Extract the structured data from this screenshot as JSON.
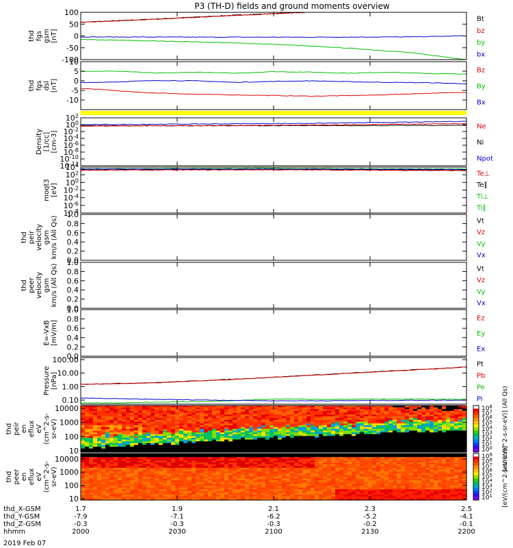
{
  "title": "P3 (TH-D) fields and ground moments overview",
  "date_label": "2019 Feb 07",
  "colors": {
    "black": "#000000",
    "red": "#dd0000",
    "green": "#00c000",
    "blue": "#0000cc",
    "yellow": "#ffff00"
  },
  "ephemeris": {
    "rows": [
      {
        "label": "thd_X-GSM",
        "values": [
          "1.7",
          "1.9",
          "2.1",
          "2.3",
          "2.5"
        ]
      },
      {
        "label": "thd_Y-GSM",
        "values": [
          "-7.9",
          "-7.1",
          "-6.2",
          "-5.2",
          "-4.1"
        ]
      },
      {
        "label": "thd_Z-GSM",
        "values": [
          "-0.3",
          "-0.3",
          "-0.3",
          "-0.2",
          "-0.1"
        ]
      },
      {
        "label": "hhmm",
        "values": [
          "2000",
          "2030",
          "2100",
          "2130",
          "2200"
        ]
      }
    ]
  },
  "colorbar": {
    "top_label": "[eV/(cm^2-s-sr-eV)] (All Qs)",
    "bottom_label": "[eV/(cm^2-s-sr-eV)]",
    "top_ticks": [
      "10^8",
      "10^7",
      "10^6",
      "10^5",
      "10^4",
      "10^3",
      "10^2",
      "10^1",
      "10^0"
    ],
    "bottom_ticks": [
      "10^9",
      "10^8",
      "10^7",
      "10^6",
      "10^5",
      "10^4",
      "10^3",
      "10^2",
      "10^1"
    ]
  },
  "chart_data": [
    {
      "type": "line",
      "ylabel": [
        "thd",
        "fgs",
        "gsm",
        "[nT]"
      ],
      "ylim": [
        -100,
        100
      ],
      "yticks": [
        "100",
        "50",
        "0",
        "-50",
        "-100"
      ],
      "yticks_v": [
        100,
        50,
        0,
        -50,
        -100
      ],
      "legend": [
        {
          "name": "Bt",
          "color": "#000000"
        },
        {
          "name": "bz",
          "color": "#dd0000"
        },
        {
          "name": "by",
          "color": "#00c000"
        },
        {
          "name": "bx",
          "color": "#0000cc"
        }
      ],
      "series": [
        {
          "name": "Bt",
          "color": "#000000",
          "x": [
            0,
            0.2,
            0.4,
            0.58
          ],
          "y": [
            58,
            72,
            88,
            100
          ]
        },
        {
          "name": "bz",
          "color": "#dd0000",
          "x": [
            0,
            0.2,
            0.4,
            0.58
          ],
          "y": [
            57,
            71,
            87,
            99
          ]
        },
        {
          "name": "by",
          "color": "#00c000",
          "x": [
            0,
            0.1,
            0.3,
            0.5,
            0.7,
            0.85,
            1.0
          ],
          "y": [
            -15,
            -18,
            -25,
            -35,
            -52,
            -70,
            -100
          ]
        },
        {
          "name": "bx",
          "color": "#0000cc",
          "x": [
            0,
            0.3,
            0.6,
            0.85,
            0.95,
            1.0
          ],
          "y": [
            -4,
            -5,
            -5,
            -4,
            -1,
            1
          ]
        }
      ]
    },
    {
      "type": "line",
      "ylabel": [
        "thd",
        "fgs",
        "dsl",
        "[nT]"
      ],
      "ylim": [
        -15,
        10
      ],
      "yticks": [
        "10",
        "5",
        "0",
        "-5",
        "-10"
      ],
      "yticks_v": [
        10,
        5,
        0,
        -5,
        -10
      ],
      "legend": [
        {
          "name": "Bz",
          "color": "#dd0000"
        },
        {
          "name": "By",
          "color": "#00c000"
        },
        {
          "name": "Bx",
          "color": "#0000cc"
        }
      ],
      "series": [
        {
          "name": "Bz",
          "color": "#dd0000",
          "x": [
            0,
            0.05,
            0.15,
            0.3,
            0.45,
            0.6,
            0.75,
            0.9,
            1.0
          ],
          "y": [
            -4,
            -4.5,
            -6,
            -7,
            -7.5,
            -8,
            -7.5,
            -6.5,
            -6
          ]
        },
        {
          "name": "By",
          "color": "#00c000",
          "x": [
            0,
            0.1,
            0.2,
            0.3,
            0.4,
            0.5,
            0.6,
            0.7,
            0.8,
            0.9,
            1.0
          ],
          "y": [
            5,
            5,
            4,
            4.5,
            4,
            4.8,
            4.5,
            4,
            4.5,
            3.8,
            3.5
          ]
        },
        {
          "name": "Bx",
          "color": "#0000cc",
          "x": [
            0,
            0.1,
            0.2,
            0.3,
            0.4,
            0.5,
            0.6,
            0.7,
            0.8,
            0.9,
            1.0
          ],
          "y": [
            -1,
            -0.5,
            0.2,
            0,
            -0.8,
            -0.3,
            0,
            -0.5,
            -0.8,
            -1,
            -1.5
          ]
        }
      ]
    },
    {
      "type": "line",
      "ylabel": [
        "Density",
        "[1/cc]",
        "[cm-3]"
      ],
      "ylim": [
        -12,
        2
      ],
      "log": true,
      "yticks": [
        "10^2",
        "10^0",
        "10^-2",
        "10^-4",
        "10^-6",
        "10^-8",
        "10^-10",
        "10^-12"
      ],
      "yticks_v": [
        2,
        0,
        -2,
        -4,
        -6,
        -8,
        -10,
        -12
      ],
      "legend": [
        {
          "name": "Ne",
          "color": "#dd0000"
        },
        {
          "name": "Ni",
          "color": "#000000"
        },
        {
          "name": "Npot",
          "color": "#0000cc"
        }
      ],
      "series": [
        {
          "name": "Ni",
          "color": "#000000",
          "x": [
            0,
            0.5,
            1.0
          ],
          "y": [
            -0.3,
            -0.3,
            -0.2
          ]
        },
        {
          "name": "Ne",
          "color": "#dd0000",
          "x": [
            0,
            0.5,
            1.0
          ],
          "y": [
            -0.4,
            -0.2,
            0.3
          ]
        },
        {
          "name": "Npot",
          "color": "#0000cc",
          "x": [
            0,
            0.3,
            0.6,
            0.9,
            1.0
          ],
          "y": [
            0,
            0.2,
            0.4,
            0.8,
            1.0
          ]
        }
      ]
    },
    {
      "type": "line",
      "ylabel": [
        "moqt3",
        "[eV]"
      ],
      "ylim": [
        -8,
        4
      ],
      "log": true,
      "yticks": [
        "10^4",
        "10^2",
        "10^0",
        "10^-2",
        "10^-4",
        "10^-6",
        "10^-8"
      ],
      "yticks_v": [
        4,
        2,
        0,
        -2,
        -4,
        -6,
        -8
      ],
      "legend": [
        {
          "name": "Te⊥",
          "color": "#dd0000"
        },
        {
          "name": "Te∥",
          "color": "#000000"
        },
        {
          "name": "Ti⊥",
          "color": "#00c000"
        },
        {
          "name": "Ti∥",
          "color": "#00c000"
        }
      ],
      "series": [
        {
          "name": "Ti",
          "color": "#00c000",
          "x": [
            0,
            0.5,
            1.0
          ],
          "y": [
            3.6,
            3.7,
            3.5
          ]
        },
        {
          "name": "Te∥",
          "color": "#000000",
          "x": [
            0,
            0.5,
            1.0
          ],
          "y": [
            3.3,
            3.4,
            3.2
          ]
        },
        {
          "name": "Te⊥",
          "color": "#dd0000",
          "x": [
            0,
            0.5,
            1.0
          ],
          "y": [
            3.2,
            3.3,
            3.1
          ]
        },
        {
          "name": "Tb",
          "color": "#0000cc",
          "x": [
            0,
            0.5,
            1.0
          ],
          "y": [
            3.5,
            3.5,
            3.4
          ]
        }
      ]
    },
    {
      "type": "line",
      "ylabel": [
        "thd",
        "peir",
        "velocity",
        "gsm",
        "km/s (All Qs)"
      ],
      "ylim": [
        0,
        1
      ],
      "yticks": [
        "1.0",
        "0.8",
        "0.6",
        "0.4",
        "0.2",
        "0.0"
      ],
      "yticks_v": [
        1,
        0.8,
        0.6,
        0.4,
        0.2,
        0
      ],
      "legend": [
        {
          "name": "Vt",
          "color": "#000000"
        },
        {
          "name": "Vz",
          "color": "#dd0000"
        },
        {
          "name": "Vy",
          "color": "#00c000"
        },
        {
          "name": "Vx",
          "color": "#0000cc"
        }
      ],
      "series": []
    },
    {
      "type": "line",
      "ylabel": [
        "thd",
        "peer",
        "velocity",
        "gsm",
        "km/s (All Qs)"
      ],
      "ylim": [
        0,
        1
      ],
      "yticks": [
        "1.0",
        "0.8",
        "0.6",
        "0.4",
        "0.2",
        "0.0"
      ],
      "yticks_v": [
        1,
        0.8,
        0.6,
        0.4,
        0.2,
        0
      ],
      "legend": [
        {
          "name": "Vt",
          "color": "#000000"
        },
        {
          "name": "Vz",
          "color": "#dd0000"
        },
        {
          "name": "Vy",
          "color": "#00c000"
        },
        {
          "name": "Vx",
          "color": "#0000cc"
        }
      ],
      "series": []
    },
    {
      "type": "line",
      "ylabel": [
        "E=-VxB",
        "[mV/m]"
      ],
      "ylim": [
        0,
        1
      ],
      "yticks": [
        "1.0",
        "0.8",
        "0.6",
        "0.4",
        "0.2",
        "0.0"
      ],
      "yticks_v": [
        1,
        0.8,
        0.6,
        0.4,
        0.2,
        0
      ],
      "legend": [
        {
          "name": "Ez",
          "color": "#dd0000"
        },
        {
          "name": "Ey",
          "color": "#00c000"
        },
        {
          "name": "Ex",
          "color": "#0000cc"
        }
      ],
      "series": []
    },
    {
      "type": "line",
      "ylabel": [
        "Pressure",
        "[nPa]"
      ],
      "ylim": [
        -1.3,
        2.15
      ],
      "log": true,
      "yticks": [
        "100.00",
        "10.00",
        "1.00",
        "0.10"
      ],
      "yticks_v": [
        2,
        1,
        0,
        -1
      ],
      "legend": [
        {
          "name": "Pt",
          "color": "#000000"
        },
        {
          "name": "Pb",
          "color": "#dd0000"
        },
        {
          "name": "Pe",
          "color": "#00c000"
        },
        {
          "name": "Pi",
          "color": "#0000cc"
        }
      ],
      "series": [
        {
          "name": "Pt",
          "color": "#000000",
          "x": [
            0,
            0.2,
            0.4,
            0.6,
            0.8,
            1.0
          ],
          "y": [
            0.17,
            0.3,
            0.55,
            0.85,
            1.15,
            1.45
          ]
        },
        {
          "name": "Pb",
          "color": "#dd0000",
          "x": [
            0,
            0.2,
            0.4,
            0.6,
            0.8,
            1.0
          ],
          "y": [
            0.16,
            0.29,
            0.54,
            0.84,
            1.14,
            1.44
          ]
        },
        {
          "name": "Pe",
          "color": "#00c000",
          "x": [
            0,
            0.1,
            0.2,
            0.35,
            0.5,
            0.65,
            0.8,
            1.0
          ],
          "y": [
            -1.2,
            -1.2,
            -1.15,
            -1.1,
            -0.92,
            -0.95,
            -0.92,
            -0.95
          ]
        },
        {
          "name": "Pi",
          "color": "#0000cc",
          "x": [
            0,
            0.1,
            0.2,
            0.35,
            0.5,
            0.65,
            0.8,
            1.0
          ],
          "y": [
            -0.85,
            -0.9,
            -0.95,
            -1.0,
            -1.05,
            -1.05,
            -1.02,
            -1.0
          ]
        }
      ]
    },
    {
      "type": "heatmap",
      "ylabel": [
        "thd",
        "peir",
        "en",
        "eflux",
        "eV",
        "(cm^2-s-",
        "sr-eV)"
      ],
      "ylim": [
        0.9,
        4.2
      ],
      "log": true,
      "yticks": [
        "10000",
        "1000",
        "100",
        "10"
      ],
      "yticks_v": [
        4,
        3,
        2,
        1
      ]
    },
    {
      "type": "heatmap",
      "ylabel": [
        "thd",
        "peer",
        "en",
        "eflux",
        "eV",
        "(cm^2-s-",
        "sr-eV)"
      ],
      "ylim": [
        0.9,
        4.4
      ],
      "log": true,
      "yticks": [
        "10000",
        "1000",
        "100",
        "10"
      ],
      "yticks_v": [
        4,
        3,
        2,
        1
      ]
    }
  ]
}
